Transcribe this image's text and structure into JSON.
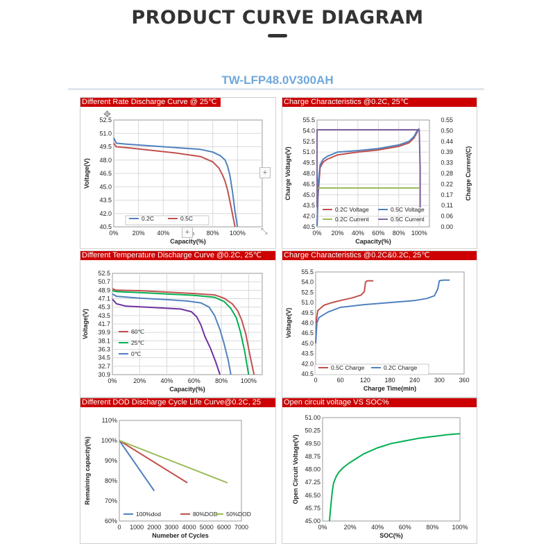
{
  "header": {
    "title": "PRODUCT CURVE DIAGRAM",
    "model": "TW-LFP48.0V300AH"
  },
  "colors": {
    "header_red": "#cc0000",
    "blue": "#4f81bd",
    "red": "#c0504d",
    "green": "#9bbb59",
    "purple": "#8064a2",
    "green2": "#00b050",
    "purple2": "#7030a0",
    "axis": "#333333",
    "grid": "#d9d9d9"
  },
  "icons": [
    "move-cursor-icon",
    "plus-icon",
    "resize-arrow-icon"
  ],
  "chart_data": [
    {
      "id": "rate",
      "type": "line",
      "title": "Different Rate Discharge Curve @ 25℃",
      "xlabel": "Capacity(%)",
      "ylabel": "Voltage(V)",
      "xlim": [
        0,
        120
      ],
      "ylim": [
        40.5,
        52.5
      ],
      "xticks": [
        "0%",
        "20%",
        "40%",
        "60%",
        "80%",
        "100%"
      ],
      "yticks": [
        "40.5",
        "42.0",
        "43.5",
        "45.0",
        "46.5",
        "48.0",
        "49.5",
        "51.0",
        "52.5"
      ],
      "legend_position": "bottom-left",
      "grid": true,
      "series": [
        {
          "name": "0.2C",
          "color": "#4f81bd",
          "x": [
            0,
            2,
            10,
            30,
            50,
            70,
            80,
            86,
            90,
            92,
            94,
            96,
            98,
            100
          ],
          "y": [
            50.5,
            49.9,
            49.8,
            49.6,
            49.4,
            49.2,
            48.9,
            48.5,
            48.0,
            47.3,
            46.2,
            44.4,
            42.2,
            40.5
          ]
        },
        {
          "name": "0.5C",
          "color": "#c0504d",
          "x": [
            0,
            2,
            10,
            30,
            50,
            70,
            80,
            85,
            88,
            90,
            92,
            94,
            96,
            98
          ],
          "y": [
            49.9,
            49.5,
            49.4,
            49.1,
            48.8,
            48.4,
            47.8,
            47.1,
            46.3,
            45.6,
            44.6,
            43.3,
            41.9,
            40.5
          ]
        }
      ]
    },
    {
      "id": "charge02",
      "type": "line",
      "title": "Charge Characteristics @0.2C, 25℃",
      "xlabel": "Capacity(%)",
      "ylabel": "Charge Voltage(V)",
      "y2label": "Charge Current(C)",
      "xlim": [
        0,
        110
      ],
      "ylim": [
        40.5,
        55.5
      ],
      "y2lim": [
        0,
        0.55
      ],
      "xticks": [
        "0%",
        "20%",
        "40%",
        "60%",
        "80%",
        "100%"
      ],
      "yticks": [
        "40.5",
        "42.0",
        "43.5",
        "45.0",
        "46.5",
        "48.0",
        "49.5",
        "51.0",
        "52.5",
        "54.0",
        "55.5"
      ],
      "y2ticks": [
        "0.00",
        "0.06",
        "0.11",
        "0.17",
        "0.22",
        "0.28",
        "0.33",
        "0.39",
        "0.44",
        "0.50",
        "0.55"
      ],
      "legend_position": "bottom",
      "grid": true,
      "series": [
        {
          "name": "0.2C Voltage",
          "color": "#c0504d",
          "axis": "left",
          "x": [
            0,
            1,
            3,
            6,
            10,
            20,
            40,
            60,
            80,
            90,
            95,
            98,
            99,
            100
          ],
          "y": [
            40.6,
            45.0,
            48.8,
            49.6,
            50.0,
            50.6,
            51.0,
            51.3,
            51.8,
            52.3,
            53.0,
            53.8,
            54.1,
            54.1
          ]
        },
        {
          "name": "0.5C Voltage",
          "color": "#4f81bd",
          "axis": "left",
          "x": [
            0,
            1,
            3,
            6,
            10,
            20,
            40,
            60,
            80,
            90,
            95,
            98,
            100
          ],
          "y": [
            40.6,
            46.5,
            49.2,
            50.0,
            50.4,
            51.0,
            51.2,
            51.5,
            52.0,
            52.5,
            53.2,
            54.0,
            54.3
          ]
        },
        {
          "name": "0.2C Current",
          "color": "#9bbb59",
          "axis": "right",
          "x": [
            0,
            100
          ],
          "y": [
            0.2,
            0.2
          ]
        },
        {
          "name": "0.5C Current",
          "color": "#8064a2",
          "axis": "right",
          "x": [
            0,
            0,
            99,
            100,
            101,
            101
          ],
          "y": [
            0.1,
            0.5,
            0.5,
            0.5,
            0.3,
            0.1
          ]
        }
      ]
    },
    {
      "id": "temp",
      "type": "line",
      "title": "Different Temperature Discharge Curve @0.2C, 25℃",
      "xlabel": "Capacity(%)",
      "ylabel": "Voltage(V)",
      "xlim": [
        0,
        110
      ],
      "ylim": [
        30.9,
        52.5
      ],
      "xticks": [
        "0%",
        "20%",
        "40%",
        "60%",
        "80%",
        "100%"
      ],
      "yticks": [
        "30.9",
        "32.7",
        "34.5",
        "36.3",
        "38.1",
        "39.9",
        "41.7",
        "43.5",
        "45.3",
        "47.1",
        "48.9",
        "50.7",
        "52.5"
      ],
      "legend_position": "left",
      "grid": true,
      "series": [
        {
          "name": "60℃",
          "color": "#c0504d",
          "x": [
            0,
            3,
            20,
            40,
            60,
            75,
            82,
            88,
            92,
            95,
            98,
            101,
            104
          ],
          "y": [
            49.2,
            48.9,
            48.8,
            48.5,
            48.2,
            47.9,
            47.2,
            46.0,
            44.5,
            42.5,
            39.5,
            35.0,
            30.9
          ]
        },
        {
          "name": "25℃",
          "color": "#00b050",
          "x": [
            0,
            3,
            20,
            40,
            60,
            75,
            82,
            87,
            91,
            94,
            97,
            100
          ],
          "y": [
            48.8,
            48.6,
            48.4,
            48.1,
            47.8,
            47.4,
            46.5,
            45.0,
            43.0,
            40.0,
            36.0,
            30.9
          ]
        },
        {
          "name": "0℃",
          "color": "#4f81bd",
          "x": [
            0,
            3,
            20,
            40,
            55,
            65,
            71,
            75,
            79,
            82,
            85,
            87
          ],
          "y": [
            48.1,
            47.6,
            47.2,
            46.9,
            46.6,
            46.2,
            45.3,
            43.5,
            40.5,
            37.5,
            34.0,
            30.9
          ]
        },
        {
          "name": "",
          "color": "#7030a0",
          "x": [
            0,
            3,
            10,
            30,
            50,
            58,
            62,
            65,
            68,
            72,
            76,
            79
          ],
          "y": [
            47.0,
            46.0,
            45.5,
            45.2,
            44.9,
            44.3,
            43.2,
            41.5,
            39.0,
            36.5,
            33.5,
            30.9
          ]
        }
      ]
    },
    {
      "id": "charge_time",
      "type": "line",
      "title": "Charge Characteristics @0.2C&0.2C, 25℃",
      "xlabel": "Charge Time(min)",
      "ylabel": "Voltage(V)",
      "xlim": [
        0,
        360
      ],
      "ylim": [
        40.5,
        55.5
      ],
      "xticks": [
        "0",
        "60",
        "120",
        "180",
        "240",
        "300",
        "360"
      ],
      "yticks": [
        "40.5",
        "42.0",
        "43.5",
        "45.0",
        "46.5",
        "48.0",
        "49.5",
        "51.0",
        "52.5",
        "54.0",
        "55.5"
      ],
      "legend_position": "bottom-left",
      "grid": false,
      "series": [
        {
          "name": "0.5C Charge",
          "color": "#c0504d",
          "x": [
            0,
            2,
            5,
            20,
            40,
            60,
            90,
            110,
            118,
            121,
            125,
            140
          ],
          "y": [
            45.0,
            48.5,
            49.8,
            50.6,
            51.0,
            51.3,
            51.7,
            52.1,
            52.6,
            54.0,
            54.2,
            54.2
          ]
        },
        {
          "name": "0.2C Charge",
          "color": "#4f81bd",
          "x": [
            0,
            3,
            8,
            30,
            60,
            120,
            180,
            240,
            270,
            288,
            296,
            300,
            310,
            325
          ],
          "y": [
            45.0,
            48.0,
            48.8,
            49.6,
            50.3,
            50.7,
            51.0,
            51.3,
            51.6,
            52.0,
            53.0,
            54.2,
            54.3,
            54.3
          ]
        }
      ]
    },
    {
      "id": "dod",
      "type": "line",
      "title": "Different DOD Discharge Cycle Life Curve@0.2C, 25",
      "xlabel": "Numeber of Cycles",
      "ylabel": "Remaining capacity(%)",
      "xlim": [
        0,
        7000
      ],
      "ylim": [
        60,
        110
      ],
      "xticks": [
        "0",
        "1000",
        "2000",
        "3000",
        "4000",
        "5000",
        "6000",
        "7000"
      ],
      "yticks": [
        "60%",
        "70%",
        "80%",
        "90%",
        "100%",
        "110%"
      ],
      "legend_position": "bottom",
      "grid": false,
      "series": [
        {
          "name": "100%dod",
          "color": "#4f81bd",
          "x": [
            0,
            2000
          ],
          "y": [
            100,
            75
          ]
        },
        {
          "name": "80%DOD",
          "color": "#c0504d",
          "x": [
            0,
            3900
          ],
          "y": [
            100,
            79
          ]
        },
        {
          "name": "50%DOD",
          "color": "#9bbb59",
          "x": [
            0,
            6200
          ],
          "y": [
            100,
            79
          ]
        }
      ]
    },
    {
      "id": "ocv",
      "type": "line",
      "title": "Open circuit voltage VS SOC%",
      "xlabel": "SOC(%)",
      "ylabel": "Open Circuit Voltage(V)",
      "xlim": [
        0,
        100
      ],
      "ylim": [
        45.0,
        51.0
      ],
      "xticks": [
        "0%",
        "20%",
        "40%",
        "60%",
        "80%",
        "100%"
      ],
      "yticks": [
        "45.00",
        "45.75",
        "46.50",
        "47.25",
        "48.00",
        "48.75",
        "49.50",
        "50.25",
        "51.00"
      ],
      "grid": false,
      "series": [
        {
          "name": "",
          "color": "#00b050",
          "x": [
            5,
            6,
            7,
            8,
            10,
            12,
            15,
            20,
            25,
            30,
            40,
            50,
            60,
            70,
            80,
            90,
            100
          ],
          "y": [
            45.0,
            45.9,
            46.7,
            47.2,
            47.6,
            47.85,
            48.1,
            48.4,
            48.65,
            48.9,
            49.25,
            49.5,
            49.65,
            49.8,
            49.9,
            50.0,
            50.07
          ]
        }
      ]
    }
  ]
}
